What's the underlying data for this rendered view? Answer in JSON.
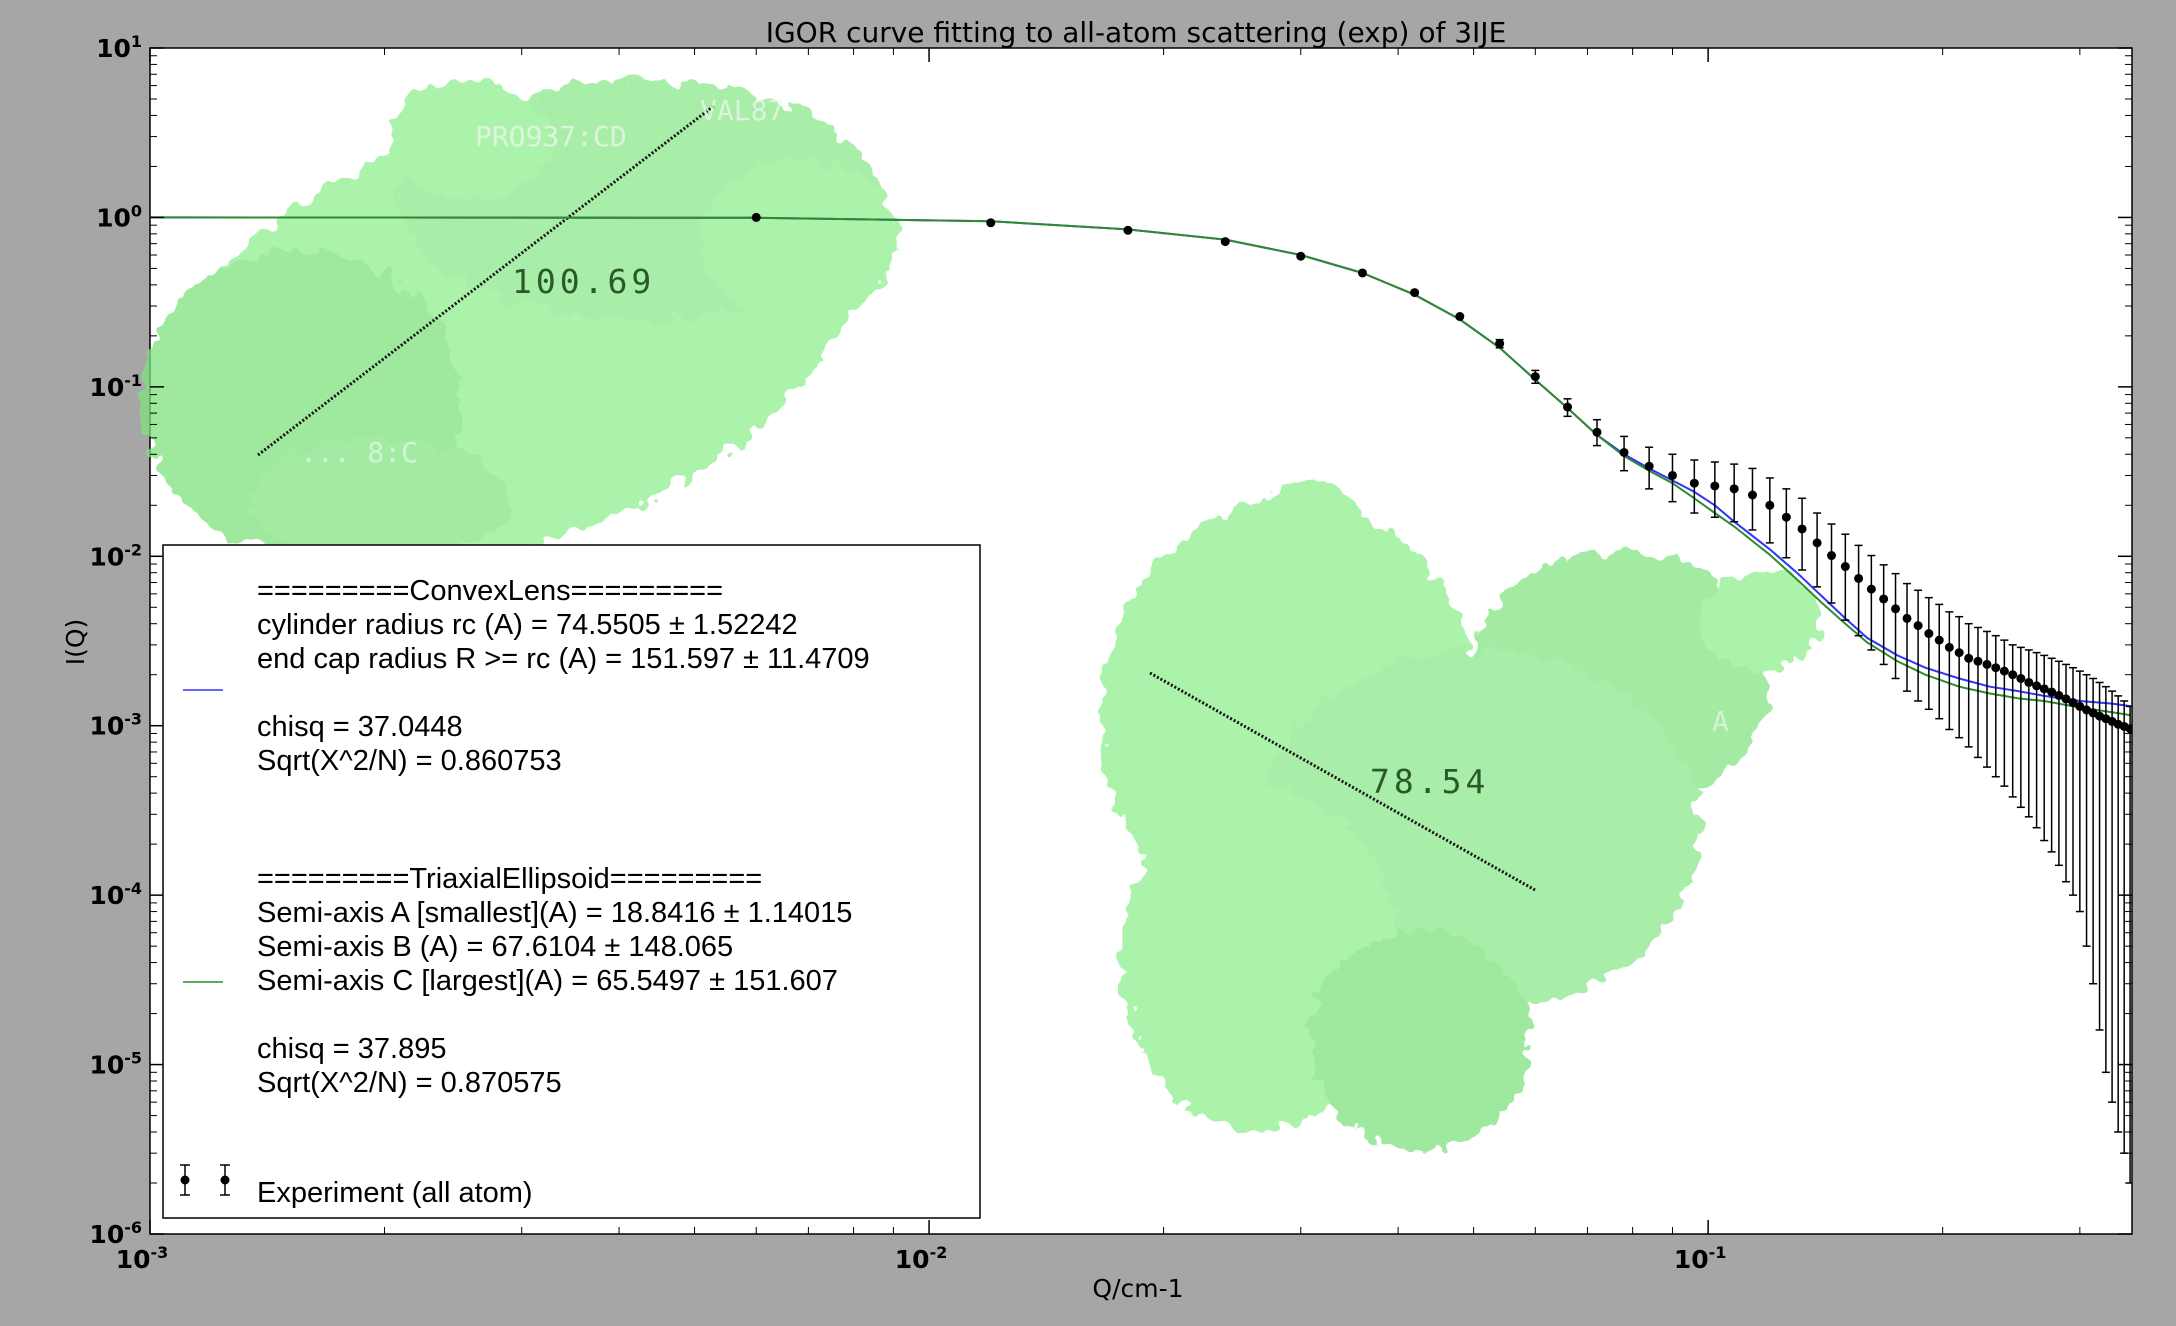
{
  "chart_data": {
    "type": "scatter",
    "title": "IGOR curve fitting to all-atom scattering (exp) of 3IJE",
    "xlabel": "Q/cm-1",
    "ylabel": "I(Q)",
    "xscale": "log",
    "yscale": "log",
    "xlim": [
      0.001,
      0.35
    ],
    "ylim": [
      1e-06,
      10
    ],
    "x_ticks": [
      {
        "base": "10",
        "exp": "-3",
        "value": 0.001
      },
      {
        "base": "10",
        "exp": "-2",
        "value": 0.01
      },
      {
        "base": "10",
        "exp": "-1",
        "value": 0.1
      }
    ],
    "y_ticks": [
      {
        "base": "10",
        "exp": "1",
        "value": 10
      },
      {
        "base": "10",
        "exp": "0",
        "value": 1
      },
      {
        "base": "10",
        "exp": "-1",
        "value": 0.1
      },
      {
        "base": "10",
        "exp": "-2",
        "value": 0.01
      },
      {
        "base": "10",
        "exp": "-3",
        "value": 0.001
      },
      {
        "base": "10",
        "exp": "-4",
        "value": 0.0001
      },
      {
        "base": "10",
        "exp": "-5",
        "value": 1e-05
      },
      {
        "base": "10",
        "exp": "-6",
        "value": 1e-06
      }
    ],
    "grid": false,
    "legend_position": "lower-left",
    "series": [
      {
        "name": "ConvexLens",
        "kind": "line",
        "color": "#3333ff",
        "legend_lines": [
          "=========ConvexLens=========",
          "cylinder radius rc (A) = 74.5505 ± 1.52242",
          "end cap radius R >= rc (A) =  151.597 ± 11.4709",
          "",
          "chisq = 37.0448",
          "Sqrt(X^2/N) = 0.860753"
        ],
        "x": [
          0.001,
          0.006,
          0.012,
          0.018,
          0.024,
          0.03,
          0.036,
          0.042,
          0.048,
          0.054,
          0.06,
          0.066,
          0.072,
          0.078,
          0.084,
          0.09,
          0.096,
          0.102,
          0.108,
          0.12,
          0.13,
          0.14,
          0.15,
          0.16,
          0.175,
          0.19,
          0.21,
          0.23,
          0.25,
          0.27,
          0.3,
          0.33,
          0.35
        ],
        "y": [
          1.0,
          0.995,
          0.95,
          0.85,
          0.74,
          0.6,
          0.47,
          0.35,
          0.25,
          0.17,
          0.11,
          0.075,
          0.052,
          0.04,
          0.033,
          0.028,
          0.024,
          0.02,
          0.016,
          0.011,
          0.008,
          0.0058,
          0.0043,
          0.0033,
          0.0026,
          0.0022,
          0.0019,
          0.0017,
          0.0016,
          0.0015,
          0.0014,
          0.00135,
          0.0013
        ]
      },
      {
        "name": "TriaxialEllipsoid",
        "kind": "line",
        "color": "#2e8b2e",
        "legend_lines": [
          "=========TriaxialEllipsoid=========",
          "Semi-axis A [smallest](A) =  18.8416 ± 1.14015",
          "Semi-axis B (A) =    67.6104 ± 148.065",
          "Semi-axis C [largest](A) =  65.5497 ± 151.607",
          "",
          "chisq = 37.895",
          "Sqrt(X^2/N) = 0.870575"
        ],
        "x": [
          0.001,
          0.006,
          0.012,
          0.018,
          0.024,
          0.03,
          0.036,
          0.042,
          0.048,
          0.054,
          0.06,
          0.066,
          0.072,
          0.078,
          0.084,
          0.09,
          0.096,
          0.102,
          0.108,
          0.12,
          0.13,
          0.14,
          0.15,
          0.16,
          0.175,
          0.19,
          0.21,
          0.23,
          0.25,
          0.27,
          0.3,
          0.33,
          0.35
        ],
        "y": [
          1.0,
          0.995,
          0.95,
          0.85,
          0.74,
          0.6,
          0.47,
          0.35,
          0.25,
          0.17,
          0.11,
          0.075,
          0.052,
          0.039,
          0.032,
          0.027,
          0.022,
          0.018,
          0.015,
          0.0102,
          0.0073,
          0.0053,
          0.004,
          0.0031,
          0.0024,
          0.002,
          0.0017,
          0.00155,
          0.00145,
          0.0014,
          0.00128,
          0.0012,
          0.00115
        ]
      },
      {
        "name": "Experiment (all atom)",
        "kind": "errorbar",
        "color": "#000000",
        "legend_lines": [
          "Experiment (all atom)"
        ],
        "x": [
          0.006,
          0.012,
          0.018,
          0.024,
          0.03,
          0.036,
          0.042,
          0.048,
          0.054,
          0.06,
          0.066,
          0.072,
          0.078,
          0.084,
          0.09,
          0.096,
          0.102,
          0.108,
          0.114,
          0.12,
          0.126,
          0.132,
          0.138,
          0.144,
          0.15,
          0.156,
          0.162,
          0.168,
          0.174,
          0.18,
          0.186,
          0.192,
          0.198,
          0.204,
          0.21,
          0.216,
          0.222,
          0.228,
          0.234,
          0.24,
          0.246,
          0.252,
          0.258,
          0.264,
          0.27,
          0.276,
          0.282,
          0.288,
          0.294,
          0.3,
          0.306,
          0.312,
          0.318,
          0.324,
          0.33,
          0.336,
          0.342,
          0.348
        ],
        "y": [
          1.0,
          0.93,
          0.84,
          0.72,
          0.59,
          0.47,
          0.36,
          0.26,
          0.18,
          0.115,
          0.076,
          0.054,
          0.041,
          0.034,
          0.03,
          0.027,
          0.026,
          0.025,
          0.023,
          0.02,
          0.017,
          0.0145,
          0.012,
          0.0101,
          0.0087,
          0.0074,
          0.0064,
          0.0056,
          0.0049,
          0.0043,
          0.0039,
          0.0035,
          0.0032,
          0.0029,
          0.0027,
          0.0025,
          0.0024,
          0.0023,
          0.0022,
          0.0021,
          0.002,
          0.0019,
          0.0018,
          0.00172,
          0.00165,
          0.00158,
          0.00151,
          0.00144,
          0.00137,
          0.0013,
          0.00124,
          0.00119,
          0.00114,
          0.0011,
          0.00106,
          0.00102,
          0.00099,
          0.00096
        ],
        "yerr_hi": [
          1.0,
          0.93,
          0.84,
          0.72,
          0.59,
          0.47,
          0.36,
          0.26,
          0.19,
          0.125,
          0.085,
          0.064,
          0.051,
          0.044,
          0.04,
          0.037,
          0.036,
          0.035,
          0.033,
          0.029,
          0.025,
          0.022,
          0.018,
          0.0155,
          0.0135,
          0.0116,
          0.0101,
          0.0089,
          0.0079,
          0.0069,
          0.0063,
          0.0057,
          0.0052,
          0.0047,
          0.0044,
          0.004,
          0.0038,
          0.0036,
          0.0034,
          0.0032,
          0.003,
          0.0029,
          0.0028,
          0.0027,
          0.0026,
          0.0025,
          0.0024,
          0.0023,
          0.0022,
          0.0021,
          0.002,
          0.0019,
          0.0018,
          0.0017,
          0.0016,
          0.0015,
          0.0014,
          0.0013
        ],
        "yerr_lo": [
          1.0,
          0.93,
          0.84,
          0.72,
          0.59,
          0.47,
          0.36,
          0.26,
          0.17,
          0.105,
          0.067,
          0.045,
          0.032,
          0.025,
          0.021,
          0.018,
          0.017,
          0.016,
          0.0143,
          0.012,
          0.0098,
          0.0083,
          0.0066,
          0.0053,
          0.0042,
          0.0034,
          0.0028,
          0.0023,
          0.0019,
          0.0016,
          0.0014,
          0.00125,
          0.0011,
          0.00095,
          0.00085,
          0.00075,
          0.00065,
          0.00057,
          0.0005,
          0.00044,
          0.00038,
          0.00033,
          0.00029,
          0.00025,
          0.00021,
          0.00018,
          0.00015,
          0.00012,
          0.0001,
          8e-05,
          5e-05,
          3e-05,
          1.6e-05,
          9e-06,
          6e-06,
          4e-06,
          3e-06,
          2e-06
        ]
      }
    ]
  },
  "overlays": {
    "measure_top": "100.69",
    "measure_bottom": "78.54",
    "atom_label_1": "PRO937:CD",
    "atom_label_2": "VAL87",
    "atom_label_3": "... 8:C",
    "atom_label_4": "A",
    "colors": {
      "protein": "#90ee90",
      "protein_shade": "#6fcf6f",
      "plot_background": "#ffffff",
      "figure_background": "#a6a6a6"
    }
  }
}
